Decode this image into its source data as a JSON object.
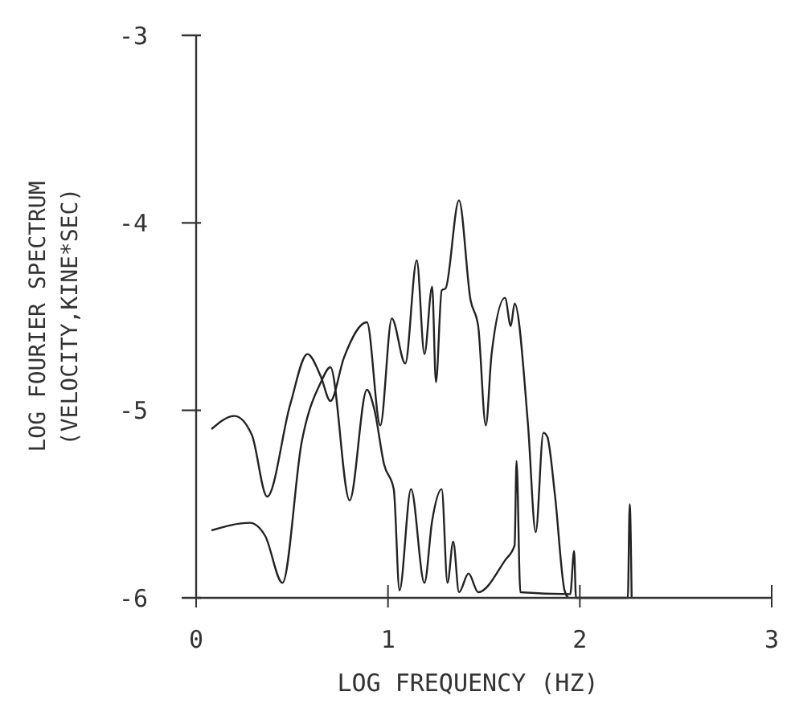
{
  "chart_data": {
    "type": "line",
    "xlabel": "LOG FREQUENCY (HZ)",
    "ylabel": "LOG FOURIER SPECTRUM\n(VELOCITY,KINE*SEC)",
    "xlim": [
      0,
      3
    ],
    "ylim": [
      -6,
      -3
    ],
    "xticks": [
      0,
      1,
      2,
      3
    ],
    "yticks": [
      -6,
      -5,
      -4,
      -3
    ],
    "grid": false,
    "marker": "none",
    "line_style": "solid",
    "series": [
      {
        "color": "#222222",
        "x": [
          0.08,
          0.2,
          0.29,
          0.37,
          0.49,
          0.58,
          0.65,
          0.7,
          0.77,
          0.89,
          0.96,
          1.02,
          1.09,
          1.15,
          1.19,
          1.23,
          1.25,
          1.28,
          1.3,
          1.37,
          1.43,
          1.47,
          1.51,
          1.54,
          1.61,
          1.64,
          1.66,
          1.73,
          1.77,
          1.81,
          1.83,
          1.87,
          1.92,
          1.94
        ],
        "values": [
          -5.1,
          -5.03,
          -5.13,
          -5.46,
          -4.97,
          -4.7,
          -4.82,
          -4.95,
          -4.72,
          -4.53,
          -5.08,
          -4.51,
          -4.75,
          -4.2,
          -4.7,
          -4.34,
          -4.85,
          -4.36,
          -4.35,
          -3.88,
          -4.41,
          -4.55,
          -5.08,
          -4.7,
          -4.4,
          -4.55,
          -4.43,
          -5.08,
          -5.65,
          -5.12,
          -5.14,
          -5.45,
          -5.96,
          -6
        ]
      },
      {
        "color": "#222222",
        "x": [
          0.08,
          0.28,
          0.36,
          0.45,
          0.55,
          0.65,
          0.7,
          0.8,
          0.89,
          0.93,
          0.98,
          1.03,
          1.06,
          1.12,
          1.19,
          1.23,
          1.28,
          1.31,
          1.34,
          1.37,
          1.42,
          1.47,
          1.61,
          1.66,
          1.67,
          1.69,
          1.95,
          1.97,
          1.98,
          2.25,
          2.26,
          2.27
        ],
        "values": [
          -5.64,
          -5.6,
          -5.67,
          -5.92,
          -5.17,
          -4.85,
          -4.77,
          -5.48,
          -4.89,
          -5,
          -5.29,
          -5.42,
          -5.96,
          -5.42,
          -5.92,
          -5.59,
          -5.42,
          -5.92,
          -5.7,
          -5.97,
          -5.87,
          -5.97,
          -5.8,
          -5.72,
          -5.27,
          -5.97,
          -5.98,
          -5.75,
          -6,
          -6,
          -5.5,
          -6
        ]
      }
    ]
  }
}
